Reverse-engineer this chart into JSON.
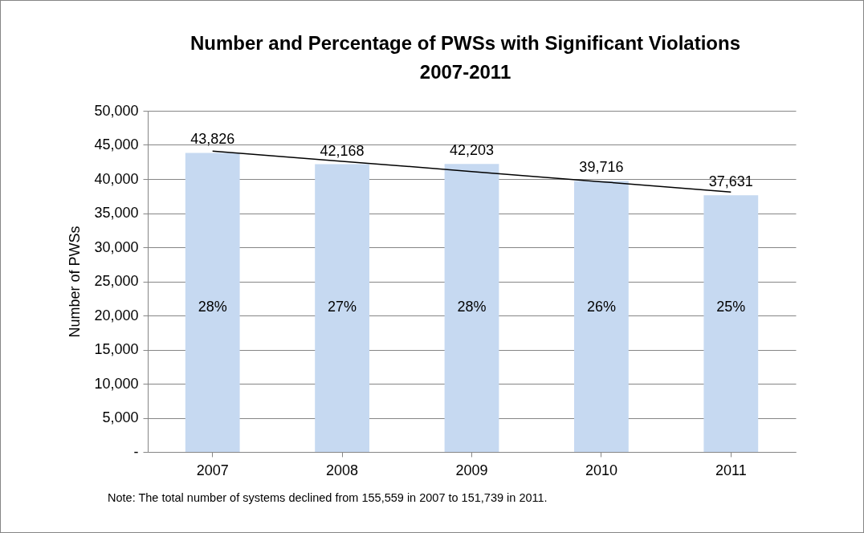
{
  "chart_data": {
    "type": "bar",
    "title": "Number and Percentage of PWSs with Significant Violations\n2007-2011",
    "ylabel": "Number of PWSs",
    "categories": [
      "2007",
      "2008",
      "2009",
      "2010",
      "2011"
    ],
    "series": [
      {
        "color": "#c6d9f1",
        "values": [
          43826,
          42168,
          42203,
          39716,
          37631
        ],
        "value_labels": [
          "43,826",
          "42,168",
          "42,203",
          "39,716",
          "37,631"
        ]
      },
      {
        "type": "line",
        "color": "#000000",
        "values": [
          44100,
          42600,
          41100,
          39600,
          38100
        ]
      }
    ],
    "ylim": [
      0,
      50000
    ],
    "yticks": [
      {
        "value": 0,
        "label": "-"
      },
      {
        "value": 5000,
        "label": "5,000"
      },
      {
        "value": 10000,
        "label": "10,000"
      },
      {
        "value": 15000,
        "label": "15,000"
      },
      {
        "value": 20000,
        "label": "20,000"
      },
      {
        "value": 25000,
        "label": "25,000"
      },
      {
        "value": 30000,
        "label": "30,000"
      },
      {
        "value": 35000,
        "label": "35,000"
      },
      {
        "value": 40000,
        "label": "40,000"
      },
      {
        "value": 45000,
        "label": "45,000"
      },
      {
        "value": 50000,
        "label": "50,000"
      }
    ],
    "grid": "y",
    "marker": "none",
    "annotations": [
      "28%",
      "27%",
      "28%",
      "26%",
      "25%",
      "Note: The total number of systems declined from 155,559 in 2007 to 151,739 in 2011."
    ]
  }
}
